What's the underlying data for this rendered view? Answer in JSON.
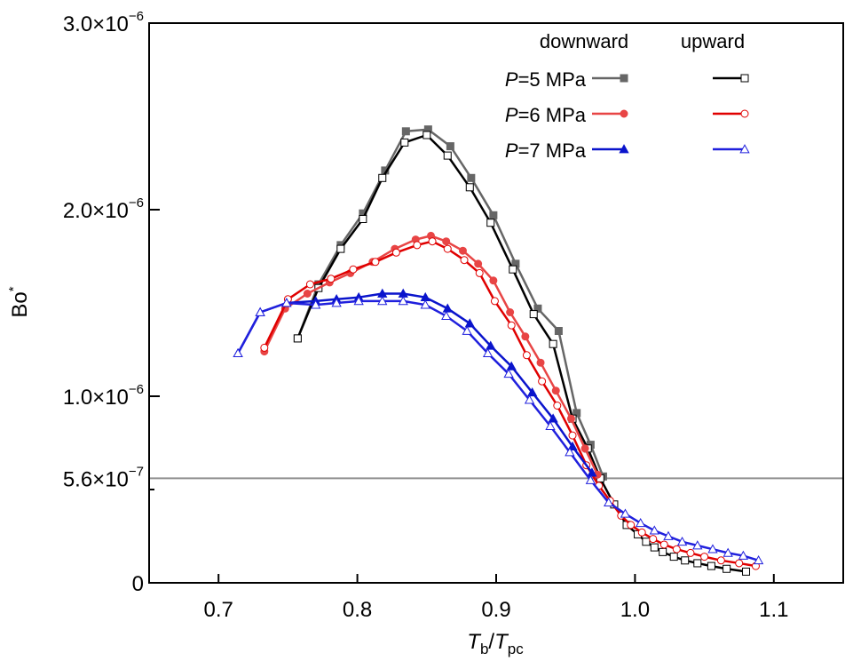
{
  "chart_data": {
    "type": "line",
    "title": "",
    "xlabel": {
      "main": "T",
      "sub": "b",
      "sep": "/",
      "main2": "T",
      "sub2": "pc"
    },
    "ylabel": {
      "main": "Bo",
      "sup": "*"
    },
    "xlim": [
      0.65,
      1.15
    ],
    "ylim": [
      0,
      3e-06
    ],
    "x_ticks": [
      {
        "value": 0.7,
        "label": "0.7"
      },
      {
        "value": 0.8,
        "label": "0.8"
      },
      {
        "value": 0.9,
        "label": "0.9"
      },
      {
        "value": 1.0,
        "label": "1.0"
      },
      {
        "value": 1.1,
        "label": "1.1"
      }
    ],
    "y_ticks": [
      {
        "value": 0,
        "mantissa": "0",
        "exp": ""
      },
      {
        "value": 1e-06,
        "mantissa": "1.0×10",
        "exp": "−6"
      },
      {
        "value": 2e-06,
        "mantissa": "2.0×10",
        "exp": "−6"
      },
      {
        "value": 3e-06,
        "mantissa": "3.0×10",
        "exp": "−6"
      }
    ],
    "y_minor_ticks": [
      5e-07
    ],
    "reference_line": {
      "value": 5.6e-07,
      "mantissa": "5.6×10",
      "exp": "−7",
      "color": "#909090"
    },
    "grid": false,
    "legend": {
      "placement": "top-right",
      "column_headers": [
        "downward",
        "upward"
      ],
      "rows": [
        {
          "prefix": "P",
          "label": "=5 MPa"
        },
        {
          "prefix": "P",
          "label": "=6 MPa"
        },
        {
          "prefix": "P",
          "label": "=7 MPa"
        }
      ]
    },
    "series": [
      {
        "name": "P=5 MPa downward",
        "pressure": "5 MPa",
        "direction": "downward",
        "color": "#666666",
        "marker": "square",
        "filled": true,
        "x": [
          0.757,
          0.772,
          0.788,
          0.804,
          0.82,
          0.835,
          0.851,
          0.867,
          0.882,
          0.898,
          0.914,
          0.93,
          0.945,
          0.958,
          0.968,
          0.977
        ],
        "y": [
          1.31e-06,
          1.6e-06,
          1.81e-06,
          1.98e-06,
          2.21e-06,
          2.42e-06,
          2.43e-06,
          2.34e-06,
          2.17e-06,
          1.97e-06,
          1.71e-06,
          1.47e-06,
          1.35e-06,
          9.1e-07,
          7.4e-07,
          5.7e-07
        ]
      },
      {
        "name": "P=5 MPa upward",
        "pressure": "5 MPa",
        "direction": "upward",
        "color": "#000000",
        "marker": "square",
        "filled": false,
        "x": [
          0.757,
          0.772,
          0.788,
          0.804,
          0.818,
          0.834,
          0.85,
          0.865,
          0.881,
          0.896,
          0.912,
          0.927,
          0.941,
          0.955,
          0.966,
          0.975,
          0.985,
          0.994,
          1.002,
          1.008,
          1.014,
          1.02,
          1.028,
          1.036,
          1.045,
          1.055,
          1.066,
          1.08
        ],
        "y": [
          1.31e-06,
          1.58e-06,
          1.79e-06,
          1.95e-06,
          2.17e-06,
          2.36e-06,
          2.4e-06,
          2.29e-06,
          2.12e-06,
          1.93e-06,
          1.68e-06,
          1.44e-06,
          1.28e-06,
          8.8e-07,
          7.2e-07,
          5.6e-07,
          4.2e-07,
          3.1e-07,
          2.6e-07,
          2.2e-07,
          1.9e-07,
          1.65e-07,
          1.4e-07,
          1.2e-07,
          1.05e-07,
          9e-08,
          7.5e-08,
          6e-08
        ]
      },
      {
        "name": "P=6 MPa downward",
        "pressure": "6 MPa",
        "direction": "downward",
        "color": "#e84545",
        "marker": "circle",
        "filled": true,
        "x": [
          0.733,
          0.748,
          0.764,
          0.78,
          0.795,
          0.811,
          0.827,
          0.842,
          0.853,
          0.864,
          0.876,
          0.887,
          0.898,
          0.91,
          0.921,
          0.932,
          0.943,
          0.954,
          0.964,
          0.973
        ],
        "y": [
          1.24e-06,
          1.47e-06,
          1.55e-06,
          1.61e-06,
          1.66e-06,
          1.72e-06,
          1.79e-06,
          1.84e-06,
          1.86e-06,
          1.83e-06,
          1.78e-06,
          1.71e-06,
          1.62e-06,
          1.45e-06,
          1.32e-06,
          1.18e-06,
          1.03e-06,
          8.8e-07,
          7.2e-07,
          5.8e-07
        ]
      },
      {
        "name": "P=6 MPa upward",
        "pressure": "6 MPa",
        "direction": "upward",
        "color": "#e00000",
        "marker": "circle",
        "filled": false,
        "x": [
          0.733,
          0.75,
          0.766,
          0.781,
          0.797,
          0.813,
          0.828,
          0.843,
          0.854,
          0.865,
          0.877,
          0.888,
          0.899,
          0.911,
          0.922,
          0.933,
          0.944,
          0.955,
          0.965,
          0.974,
          0.982,
          0.99,
          0.997,
          1.005,
          1.013,
          1.021,
          1.03,
          1.04,
          1.05,
          1.062,
          1.075,
          1.087
        ],
        "y": [
          1.26e-06,
          1.52e-06,
          1.6e-06,
          1.63e-06,
          1.68e-06,
          1.72e-06,
          1.77e-06,
          1.81e-06,
          1.83e-06,
          1.79e-06,
          1.73e-06,
          1.66e-06,
          1.51e-06,
          1.38e-06,
          1.22e-06,
          1.08e-06,
          9.5e-07,
          7.9e-07,
          6.3e-07,
          5.2e-07,
          4.4e-07,
          3.6e-07,
          3.1e-07,
          2.7e-07,
          2.35e-07,
          2.05e-07,
          1.8e-07,
          1.6e-07,
          1.4e-07,
          1.2e-07,
          1.05e-07,
          9e-08
        ]
      },
      {
        "name": "P=7 MPa downward",
        "pressure": "7 MPa",
        "direction": "downward",
        "color": "#0a14cc",
        "marker": "triangle",
        "filled": true,
        "x": [
          0.714,
          0.73,
          0.749,
          0.77,
          0.785,
          0.801,
          0.818,
          0.833,
          0.849,
          0.865,
          0.881,
          0.896,
          0.911,
          0.926,
          0.941,
          0.955,
          0.969
        ],
        "y": [
          1.23e-06,
          1.45e-06,
          1.5e-06,
          1.51e-06,
          1.52e-06,
          1.53e-06,
          1.55e-06,
          1.55e-06,
          1.53e-06,
          1.47e-06,
          1.39e-06,
          1.27e-06,
          1.16e-06,
          1.02e-06,
          8.8e-07,
          7.3e-07,
          5.9e-07
        ]
      },
      {
        "name": "P=7 MPa upward",
        "pressure": "7 MPa",
        "direction": "upward",
        "color": "#2020dd",
        "marker": "triangle",
        "filled": false,
        "x": [
          0.714,
          0.73,
          0.749,
          0.77,
          0.785,
          0.801,
          0.818,
          0.833,
          0.849,
          0.864,
          0.879,
          0.894,
          0.909,
          0.924,
          0.939,
          0.953,
          0.968,
          0.981,
          0.993,
          1.004,
          1.014,
          1.024,
          1.034,
          1.045,
          1.056,
          1.067,
          1.078,
          1.089
        ],
        "y": [
          1.23e-06,
          1.45e-06,
          1.5e-06,
          1.49e-06,
          1.5e-06,
          1.51e-06,
          1.51e-06,
          1.51e-06,
          1.49e-06,
          1.43e-06,
          1.35e-06,
          1.23e-06,
          1.12e-06,
          9.8e-07,
          8.4e-07,
          7e-07,
          5.5e-07,
          4.3e-07,
          3.7e-07,
          3.2e-07,
          2.8e-07,
          2.5e-07,
          2.2e-07,
          2e-07,
          1.8e-07,
          1.6e-07,
          1.45e-07,
          1.2e-07
        ]
      }
    ]
  }
}
